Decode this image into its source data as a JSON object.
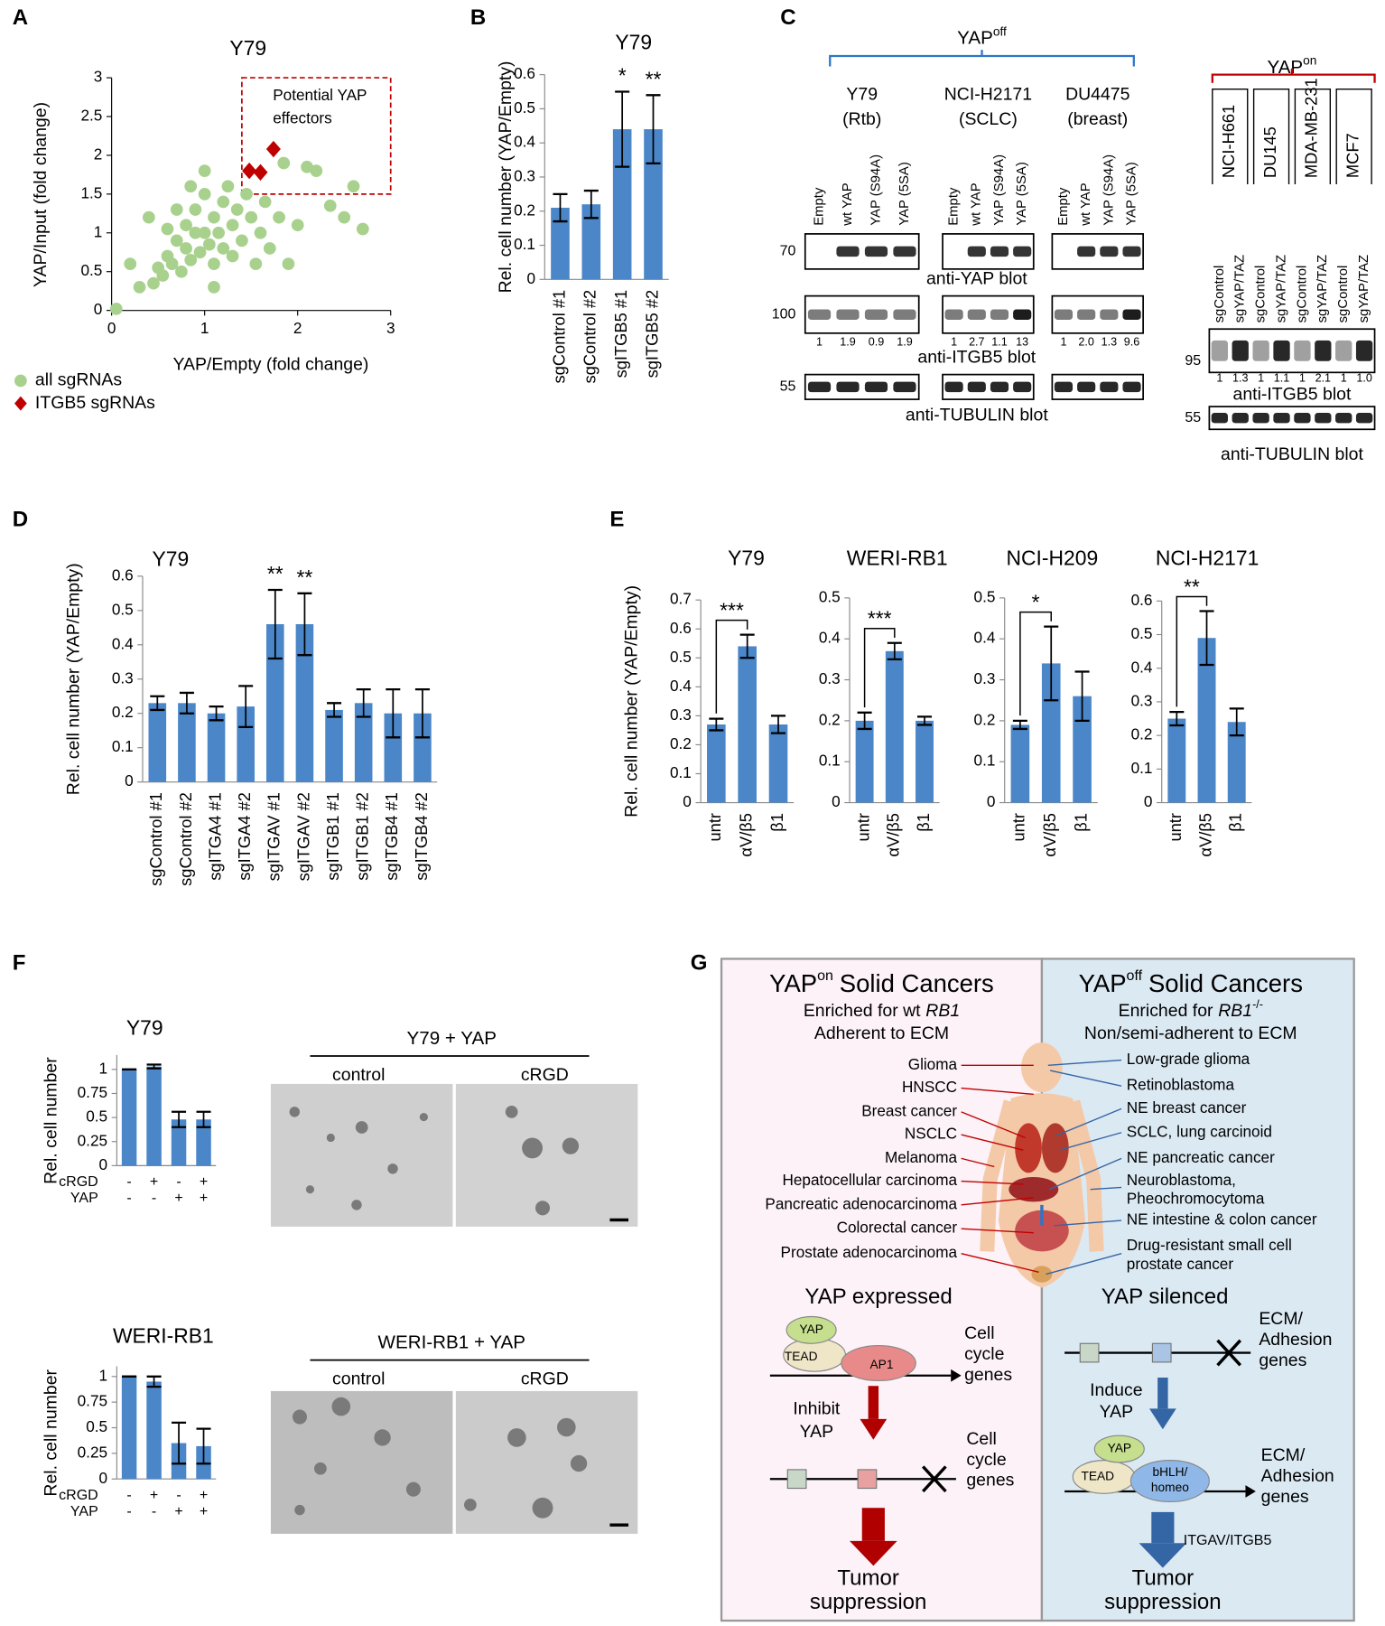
{
  "panels": [
    "A",
    "B",
    "C",
    "D",
    "E",
    "F",
    "G"
  ],
  "chart_data": [
    {
      "type": "scatter",
      "title": "Y79",
      "xlabel": "YAP/Empty (fold change)",
      "ylabel": "YAP/Input (fold change)",
      "xlim": [
        0,
        3
      ],
      "ylim": [
        0,
        3
      ],
      "xticks": [
        0,
        1,
        2,
        3
      ],
      "yticks": [
        0,
        0.5,
        1,
        1.5,
        2,
        2.5,
        3
      ],
      "legend": "bottom-left",
      "series": [
        {
          "name": "all sgRNAs",
          "color": "#a9d18e",
          "marker": "circle",
          "x": [
            0.05,
            0.3,
            0.45,
            0.5,
            0.55,
            0.6,
            0.65,
            0.7,
            0.75,
            0.8,
            0.8,
            0.85,
            0.9,
            0.9,
            0.95,
            1.0,
            1.0,
            1.05,
            1.1,
            1.1,
            1.15,
            1.2,
            1.2,
            1.25,
            1.3,
            1.3,
            1.35,
            1.4,
            1.45,
            1.5,
            1.55,
            1.6,
            1.65,
            1.7,
            1.8,
            1.85,
            1.9,
            2.0,
            2.1,
            2.2,
            2.35,
            2.5,
            2.6,
            2.7,
            0.85,
            0.7,
            1.0,
            0.4,
            0.6,
            1.1,
            0.2
          ],
          "values": [
            0.02,
            0.3,
            0.35,
            0.55,
            0.45,
            0.7,
            0.6,
            0.9,
            0.5,
            0.8,
            1.1,
            0.65,
            1.0,
            1.3,
            0.75,
            1.0,
            1.5,
            0.85,
            1.2,
            0.6,
            1.0,
            1.4,
            0.8,
            1.6,
            1.1,
            0.7,
            1.3,
            0.9,
            1.5,
            1.2,
            0.6,
            1.0,
            1.4,
            0.8,
            1.2,
            1.9,
            0.6,
            1.1,
            1.85,
            1.8,
            1.35,
            1.2,
            1.6,
            1.05,
            1.6,
            1.3,
            1.8,
            1.2,
            1.05,
            0.3,
            0.6
          ]
        },
        {
          "name": "ITGB5 sgRNAs",
          "color": "#c00000",
          "marker": "diamond",
          "x": [
            1.48,
            1.6,
            1.74
          ],
          "values": [
            1.8,
            1.78,
            2.08
          ]
        }
      ],
      "annotation": {
        "text": [
          "Potential YAP",
          "effectors"
        ],
        "color": "#c00000",
        "xlim": [
          1.4,
          3
        ],
        "ylim": [
          1.5,
          3
        ]
      }
    },
    {
      "type": "bar",
      "title": "Y79",
      "ylabel": "Rel. cell number (YAP/Empty)",
      "color": "#4a86c8",
      "categories": [
        "sgControl #1",
        "sgControl #2",
        "sgITGB5 #1",
        "sgITGB5 #2"
      ],
      "values": [
        0.21,
        0.22,
        0.44,
        0.44
      ],
      "errors": [
        0.04,
        0.04,
        0.11,
        0.1
      ],
      "significance": [
        null,
        null,
        "*",
        "**"
      ],
      "ylim": [
        0,
        0.6
      ],
      "yticks": [
        0,
        0.1,
        0.2,
        0.3,
        0.4,
        0.5,
        0.6
      ]
    },
    {
      "type": "bar",
      "title": "Y79",
      "ylabel": "Rel. cell number (YAP/Empty)",
      "color": "#4a86c8",
      "categories": [
        "sgControl #1",
        "sgControl #2",
        "sgITGA4 #1",
        "sgITGA4 #2",
        "sgITGAV #1",
        "sgITGAV #2",
        "sgITGB1 #1",
        "sgITGB1 #2",
        "sgITGB4 #1",
        "sgITGB4 #2"
      ],
      "values": [
        0.23,
        0.23,
        0.2,
        0.22,
        0.46,
        0.46,
        0.21,
        0.23,
        0.2,
        0.2
      ],
      "errors": [
        0.02,
        0.03,
        0.02,
        0.06,
        0.1,
        0.09,
        0.02,
        0.04,
        0.07,
        0.07
      ],
      "significance": [
        null,
        null,
        null,
        null,
        "**",
        "**",
        null,
        null,
        null,
        null
      ],
      "ylim": [
        0,
        0.6
      ],
      "yticks": [
        0,
        0.1,
        0.2,
        0.3,
        0.4,
        0.5,
        0.6
      ]
    },
    {
      "type": "bar",
      "title": "Y79",
      "ylabel": "Rel. cell number (YAP/Empty)",
      "color": "#4a86c8",
      "categories": [
        "untr",
        "αV/β5",
        "β1"
      ],
      "values": [
        0.27,
        0.54,
        0.27
      ],
      "errors": [
        0.02,
        0.04,
        0.03
      ],
      "significance_label": "***",
      "ylim": [
        0,
        0.7
      ],
      "yticks": [
        0,
        0.1,
        0.2,
        0.3,
        0.4,
        0.5,
        0.6,
        0.7
      ]
    },
    {
      "type": "bar",
      "title": "WERI-RB1",
      "color": "#4a86c8",
      "categories": [
        "untr",
        "αV/β5",
        "β1"
      ],
      "values": [
        0.2,
        0.37,
        0.2
      ],
      "errors": [
        0.02,
        0.02,
        0.01
      ],
      "significance_label": "***",
      "ylim": [
        0,
        0.5
      ],
      "yticks": [
        0,
        0.1,
        0.2,
        0.3,
        0.4,
        0.5
      ]
    },
    {
      "type": "bar",
      "title": "NCI-H209",
      "color": "#4a86c8",
      "categories": [
        "untr",
        "αV/β5",
        "β1"
      ],
      "values": [
        0.19,
        0.34,
        0.26
      ],
      "errors": [
        0.01,
        0.09,
        0.06
      ],
      "significance_label": "*",
      "ylim": [
        0,
        0.5
      ],
      "yticks": [
        0,
        0.1,
        0.2,
        0.3,
        0.4,
        0.5
      ]
    },
    {
      "type": "bar",
      "title": "NCI-H2171",
      "color": "#4a86c8",
      "categories": [
        "untr",
        "αV/β5",
        "β1"
      ],
      "values": [
        0.25,
        0.49,
        0.24
      ],
      "errors": [
        0.02,
        0.08,
        0.04
      ],
      "significance_label": "**",
      "ylim": [
        0,
        0.6
      ],
      "yticks": [
        0,
        0.1,
        0.2,
        0.3,
        0.4,
        0.5,
        0.6
      ]
    },
    {
      "type": "bar",
      "title": "Y79",
      "ylabel": "Rel. cell number",
      "color": "#4a86c8",
      "values": [
        1,
        1.03,
        0.48,
        0.48
      ],
      "errors": [
        0,
        0.02,
        0.08,
        0.08
      ],
      "conditions": [
        {
          "name": "cRGD",
          "values": [
            "-",
            "+",
            "-",
            "+"
          ]
        },
        {
          "name": "YAP",
          "values": [
            "-",
            "-",
            "+",
            "+"
          ]
        }
      ],
      "ylim": [
        0,
        1.15
      ],
      "yticks": [
        0,
        0.25,
        0.5,
        0.75,
        1
      ]
    },
    {
      "type": "bar",
      "title": "WERI-RB1",
      "ylabel": "Rel. cell number",
      "color": "#4a86c8",
      "values": [
        1,
        0.95,
        0.35,
        0.32
      ],
      "errors": [
        0,
        0.05,
        0.2,
        0.17
      ],
      "conditions": [
        {
          "name": "cRGD",
          "values": [
            "-",
            "+",
            "-",
            "+"
          ]
        },
        {
          "name": "YAP",
          "values": [
            "-",
            "-",
            "+",
            "+"
          ]
        }
      ],
      "ylim": [
        0,
        1.1
      ],
      "yticks": [
        0,
        0.25,
        0.5,
        0.75,
        1
      ]
    }
  ],
  "blots": {
    "yap_off": {
      "label": "YAP",
      "sup": "off",
      "color": "#2e75c8"
    },
    "yap_on": {
      "label": "YAP",
      "sup": "on",
      "color": "#c00000"
    },
    "off_lanes": [
      "Empty",
      "wt YAP",
      "YAP (S94A)",
      "YAP (5SA)"
    ],
    "off_groups": [
      {
        "name": [
          "Y79",
          "(Rtb)"
        ],
        "itgb5": [
          "1",
          "1.9",
          "0.9",
          "1.9"
        ]
      },
      {
        "name": [
          "NCI-H2171",
          "(SCLC)"
        ],
        "itgb5": [
          "1",
          "2.7",
          "1.1",
          "13"
        ]
      },
      {
        "name": [
          "DU4475",
          "(breast)"
        ],
        "itgb5": [
          "1",
          "2.0",
          "1.3",
          "9.6"
        ]
      }
    ],
    "off_rows": [
      {
        "marker": 70,
        "label": "anti-YAP blot"
      },
      {
        "marker": 100,
        "label": "anti-ITGB5 blot"
      },
      {
        "marker": 55,
        "label": "anti-TUBULIN blot"
      }
    ],
    "on_lanes": [
      "sgControl",
      "sgYAP/TAZ"
    ],
    "on_groups": [
      {
        "name": "NCI-H661",
        "itgb5": [
          "1",
          "1.3"
        ]
      },
      {
        "name": "DU145",
        "itgb5": [
          "1",
          "1.1"
        ]
      },
      {
        "name": "MDA-MB-231",
        "itgb5": [
          "1",
          "2.1"
        ]
      },
      {
        "name": "MCF7",
        "itgb5": [
          "1",
          "1.0"
        ]
      }
    ],
    "on_rows": [
      {
        "marker": 95,
        "label": "anti-ITGB5 blot"
      },
      {
        "marker": 55,
        "label": "anti-TUBULIN blot"
      }
    ]
  },
  "micrographs": [
    {
      "title": "Y79 + YAP",
      "labels": [
        "control",
        "cRGD"
      ]
    },
    {
      "title": "WERI-RB1 + YAP",
      "labels": [
        "control",
        "cRGD"
      ]
    }
  ],
  "diagram": {
    "left": {
      "title_main": "YAP",
      "title_sup": "on",
      "title_rest": "Solid Cancers",
      "enriched": "Enriched for wt",
      "enriched_gene": "RB1",
      "adhesion": "Adherent to ECM",
      "cancers": [
        "Glioma",
        "HNSCC",
        "Breast cancer",
        "NSCLC",
        "Melanoma",
        "Hepatocellular carcinoma",
        "Pancreatic adenocarcinoma",
        "Colorectal cancer",
        "Prostate adenocarcinoma"
      ],
      "state": "YAP expressed",
      "proteins": [
        "YAP",
        "TEAD",
        "AP1"
      ],
      "genes": [
        "Cell",
        "cycle",
        "genes"
      ],
      "treatment": [
        "Inhibit",
        "YAP"
      ],
      "silenced_genes": [
        "Cell",
        "cycle",
        "genes"
      ],
      "outcome": [
        "Tumor",
        "suppression"
      ]
    },
    "right": {
      "title_main": "YAP",
      "title_sup": "off",
      "title_rest": "Solid Cancers",
      "enriched": "Enriched for",
      "enriched_gene": "RB1",
      "enriched_sup": "-/-",
      "adhesion": "Non/semi-adherent to ECM",
      "cancers": [
        [
          "Low-grade glioma"
        ],
        [
          "Retinoblastoma"
        ],
        [
          "NE breast cancer"
        ],
        [
          "SCLC, lung carcinoid"
        ],
        [
          "NE pancreatic cancer"
        ],
        [
          "Neuroblastoma,",
          "Pheochromocytoma"
        ],
        [
          "NE intestine & colon cancer"
        ],
        [
          "Drug-resistant small cell",
          "prostate cancer"
        ]
      ],
      "state": "YAP silenced",
      "silenced_genes": [
        "ECM/",
        "Adhesion",
        "genes"
      ],
      "treatment": [
        "Induce",
        "YAP"
      ],
      "proteins": [
        "YAP",
        "TEAD"
      ],
      "cofactor": [
        "bHLH/",
        "homeo"
      ],
      "genes": [
        "ECM/",
        "Adhesion",
        "genes"
      ],
      "effector": "ITGAV/ITGB5",
      "outcome": [
        "Tumor",
        "suppression"
      ]
    }
  }
}
